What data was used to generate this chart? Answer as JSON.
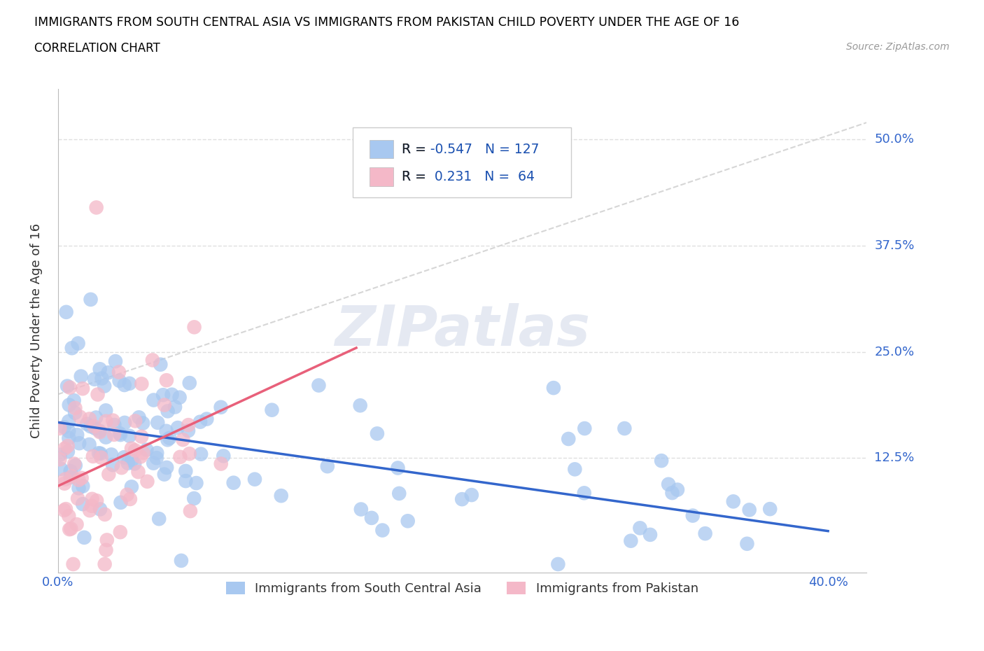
{
  "title": "IMMIGRANTS FROM SOUTH CENTRAL ASIA VS IMMIGRANTS FROM PAKISTAN CHILD POVERTY UNDER THE AGE OF 16",
  "subtitle": "CORRELATION CHART",
  "source": "Source: ZipAtlas.com",
  "ylabel": "Child Poverty Under the Age of 16",
  "xlim": [
    0.0,
    0.42
  ],
  "ylim": [
    -0.01,
    0.56
  ],
  "series1_label": "Immigrants from South Central Asia",
  "series1_color": "#a8c8f0",
  "series1_line_color": "#3366cc",
  "series1_R": -0.547,
  "series1_N": 127,
  "series2_label": "Immigrants from Pakistan",
  "series2_color": "#f4b8c8",
  "series2_line_color": "#e8607a",
  "series2_R": 0.231,
  "series2_N": 64,
  "watermark": "ZIPatlas",
  "background_color": "#ffffff",
  "grid_color": "#d8d8d8",
  "title_color": "#000000",
  "legend_R_color": "#1a50b0",
  "tick_label_color": "#3366cc"
}
